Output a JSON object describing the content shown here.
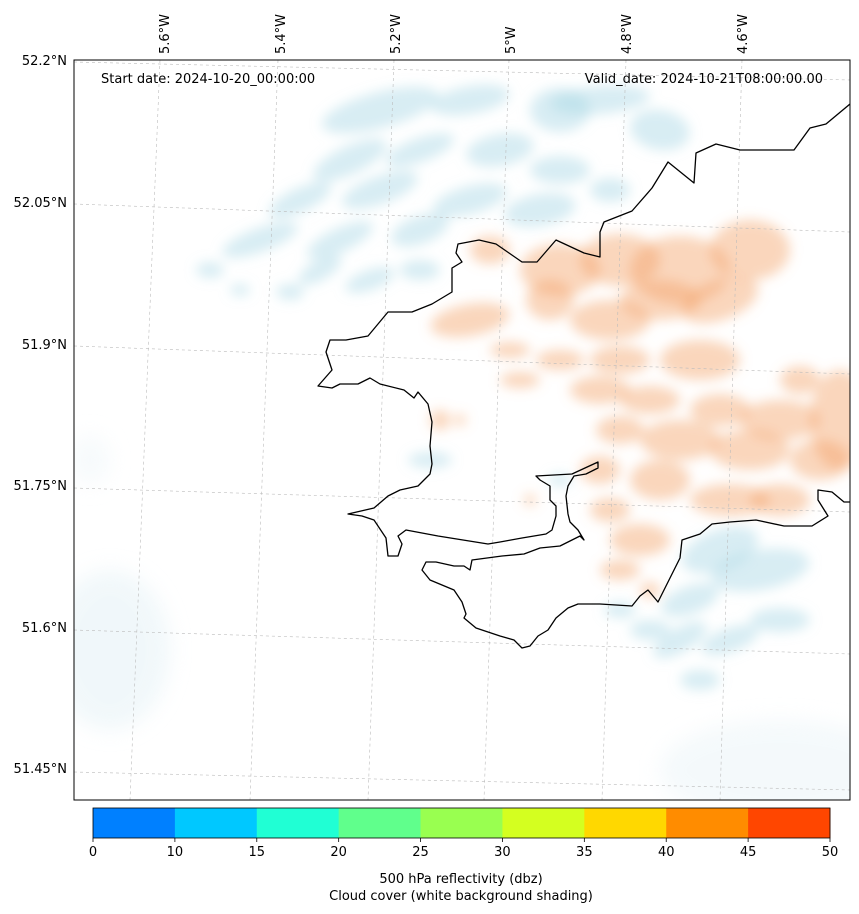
{
  "header": {
    "start_date": "Start date: 2024-10-20_00:00:00",
    "valid_date": "Valid_date: 2024-10-21T08:00:00.00"
  },
  "axes": {
    "lon_labels": [
      "5.6°W",
      "5.4°W",
      "5.2°W",
      "5°W",
      "4.8°W",
      "4.6°W"
    ],
    "lat_labels": [
      "52.2°N",
      "52.05°N",
      "51.9°N",
      "51.75°N",
      "51.6°N",
      "51.45°N"
    ]
  },
  "colorbar": {
    "ticks": [
      "0",
      "10",
      "15",
      "20",
      "25",
      "30",
      "35",
      "40",
      "45",
      "50"
    ],
    "colors": [
      "#0080ff",
      "#00c8ff",
      "#20ffd4",
      "#60ff8c",
      "#99ff50",
      "#d4ff20",
      "#ffd800",
      "#ff8c00",
      "#ff4600"
    ],
    "label_line1": "500 hPa reflectivity (dbz)",
    "label_line2": "Cloud cover (white background shading)"
  },
  "field_colors": {
    "cloud": "#a9d6e5",
    "reflectivity_low": "#f4a46a",
    "coastline": "#000000"
  }
}
